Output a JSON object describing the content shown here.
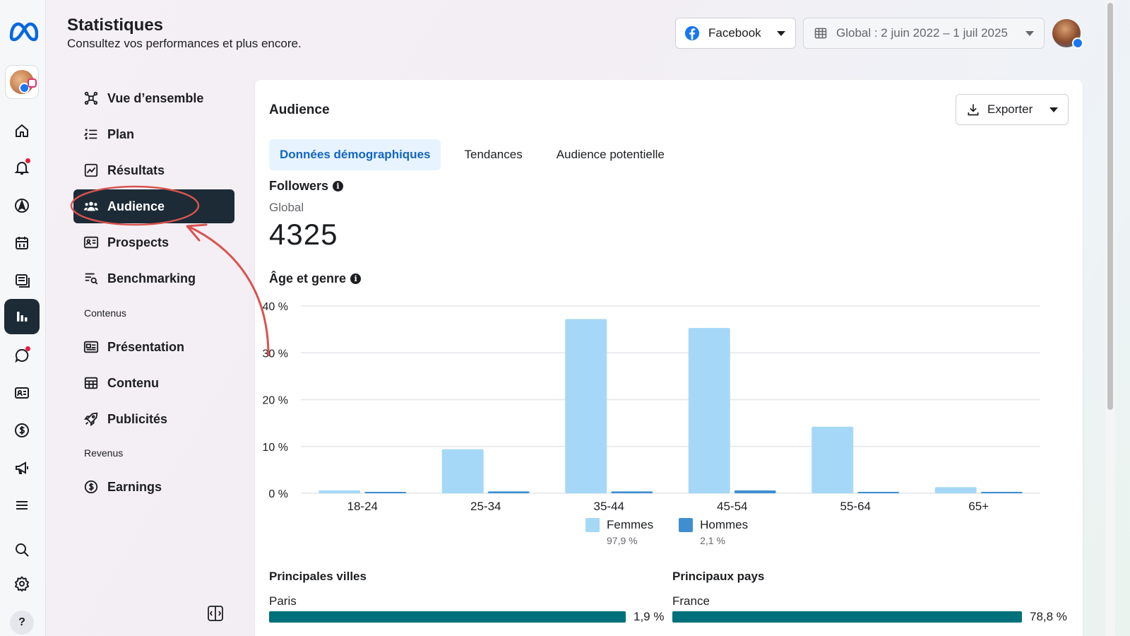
{
  "header": {
    "title": "Statistiques",
    "subtitle": "Consultez vos performances et plus encore.",
    "platform": "Facebook",
    "date_range": "Global : 2 juin 2022 – 1 juil 2025"
  },
  "rail": {
    "items": [
      "home-icon",
      "bell-icon",
      "compass-icon",
      "calendar-icon",
      "posts-icon",
      "insights-icon",
      "chat-icon",
      "contact-card-icon",
      "dollar-icon",
      "megaphone-icon",
      "menu-icon",
      "search-icon",
      "gear-icon",
      "help-icon"
    ],
    "active": "insights-icon",
    "help_glyph": "?"
  },
  "nav": {
    "items": [
      {
        "label": "Vue d’ensemble",
        "icon": "overview-icon"
      },
      {
        "label": "Plan",
        "icon": "plan-list-icon"
      },
      {
        "label": "Résultats",
        "icon": "results-chart-icon"
      },
      {
        "label": "Audience",
        "icon": "people-icon",
        "active": true
      },
      {
        "label": "Prospects",
        "icon": "id-card-icon"
      },
      {
        "label": "Benchmarking",
        "icon": "benchmark-icon"
      }
    ],
    "section_content": "Contenus",
    "content_items": [
      {
        "label": "Présentation",
        "icon": "presentation-icon"
      },
      {
        "label": "Contenu",
        "icon": "table-icon"
      },
      {
        "label": "Publicités",
        "icon": "rocket-icon"
      }
    ],
    "section_revenue": "Revenus",
    "revenue_items": [
      {
        "label": "Earnings",
        "icon": "dollar-circle-icon"
      }
    ]
  },
  "card": {
    "title": "Audience",
    "export_label": "Exporter",
    "tabs": [
      "Données démographiques",
      "Tendances",
      "Audience potentielle"
    ],
    "active_tab": 0,
    "followers_title": "Followers",
    "followers_scope": "Global",
    "followers_value": "4325",
    "chart_title": "Âge et genre",
    "legend": [
      {
        "name": "Femmes",
        "pct": "97,9 %",
        "color": "#a5d8f6"
      },
      {
        "name": "Hommes",
        "pct": "2,1 %",
        "color": "#3f8fd0"
      }
    ],
    "cities_title": "Principales villes",
    "cities": [
      {
        "name": "Paris",
        "pct": "1,9 %"
      }
    ],
    "countries_title": "Principaux pays",
    "countries": [
      {
        "name": "France",
        "pct": "78,8 %"
      }
    ]
  },
  "chart_data": {
    "type": "bar",
    "categories": [
      "18-24",
      "25-34",
      "35-44",
      "45-54",
      "55-64",
      "65+"
    ],
    "series": [
      {
        "name": "Femmes",
        "values": [
          0.6,
          9.4,
          37.2,
          35.3,
          14.2,
          1.3
        ]
      },
      {
        "name": "Hommes",
        "values": [
          0.2,
          0.4,
          0.4,
          0.6,
          0.2,
          0.3
        ]
      }
    ],
    "yticks": [
      "0 %",
      "10 %",
      "20 %",
      "30 %",
      "40 %"
    ],
    "ylim": [
      0,
      40
    ],
    "grid": true,
    "legend": "bottom"
  },
  "annotation_color": "#d9534f"
}
